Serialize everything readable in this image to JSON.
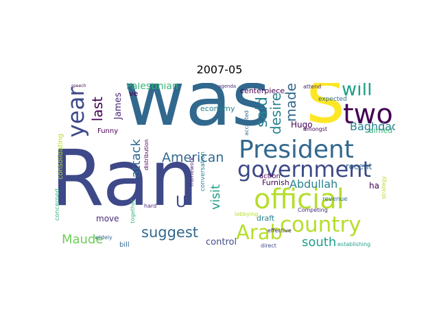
{
  "title": "2007-05",
  "words": {
    "was": "was",
    "ran": "Ran",
    "s": "s",
    "two": "two",
    "president": "President",
    "government": "government",
    "official": "official",
    "country": "country",
    "arab": "Arab",
    "year": "year",
    "will": "will",
    "last": "last",
    "said": "said",
    "made": "made",
    "desire": "desire",
    "american": "American",
    "abdullah": "Abdullah",
    "suggest": "suggest",
    "visit": "visit",
    "attack": "attack",
    "maude": "Maude",
    "south": "south",
    "palestinian": "Palestinian",
    "baghdad": "Baghdad",
    "james": "James",
    "u": "U",
    "hugo": "Hugo",
    "control": "control",
    "furnish": "Furnish",
    "recent": "recent",
    "economy": "economy",
    "centerpiece": "centerpiece",
    "conversation": "conversation",
    "funny": "Funny",
    "move": "move",
    "bill": "bill",
    "draft": "draft",
    "action": "action",
    "ha": "ha",
    "aimed": "aimed",
    "concerned": "concerned",
    "consolidating": "consolidating",
    "ve": "ve",
    "expected": "expected",
    "amongst": "amongst",
    "effective": "effective",
    "revenue": "revenue",
    "competing": "Competing",
    "establishing": "establishing",
    "strategy": "strategy",
    "lobbying": "lobbying",
    "direct": "direct",
    "hard": "hard",
    "widely": "widely",
    "together": "together",
    "distribution": "distribution",
    "framework": "framework",
    "accepted": "accepted",
    "attend": "attend",
    "agenda": "agenda",
    "speech": "speech"
  },
  "colors": {
    "dark_purple": "#440154",
    "purple": "#482878",
    "indigo": "#3e4989",
    "blue": "#31688e",
    "teal": "#26828e",
    "green_teal": "#1f9e89",
    "green": "#35b779",
    "light_green": "#6ece58",
    "lime": "#b5de2b",
    "yellow": "#fde725"
  }
}
